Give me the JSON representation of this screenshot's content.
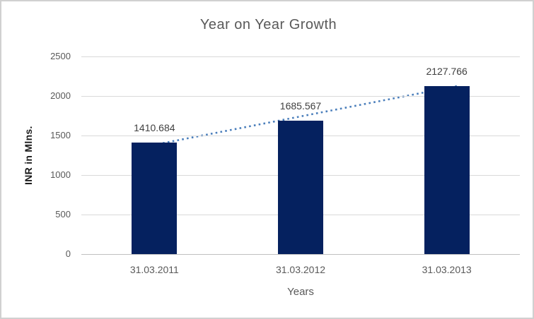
{
  "chart_data": {
    "type": "bar",
    "title": "Year on Year Growth",
    "categories": [
      "31.03.2011",
      "31.03.2012",
      "31.03.2013"
    ],
    "values": [
      1410.684,
      1685.567,
      2127.766
    ],
    "data_labels": [
      "1410.684",
      "1685.567",
      "2127.766"
    ],
    "xlabel": "Years",
    "ylabel": "INR in Mlns.",
    "ylim": [
      0,
      2500
    ],
    "yticks": [
      0,
      500,
      1000,
      1500,
      2000,
      2500
    ],
    "grid": "horizontal-only",
    "legend": "none",
    "bar_color": "#05215f",
    "trendline": {
      "type": "linear",
      "style": "dotted",
      "color": "#4a7ebb"
    },
    "colors": {
      "title_text": "#595959",
      "axis_text": "#595959",
      "data_label_text": "#404040",
      "gridline": "#d9d9d9",
      "axis_line": "#bfbfbf",
      "frame_border": "#d0d0d0",
      "background": "#ffffff"
    }
  }
}
